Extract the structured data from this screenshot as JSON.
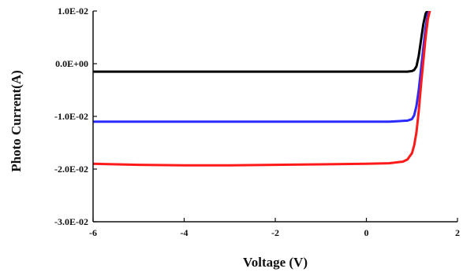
{
  "chart_data": {
    "type": "line",
    "title": "",
    "xlabel": "Voltage (V)",
    "ylabel": "Photo Current(A)",
    "xlim": [
      -6,
      2
    ],
    "ylim": [
      -0.03,
      0.01
    ],
    "x_ticks": [
      -6,
      -4,
      -2,
      0,
      2
    ],
    "x_tick_labels": [
      "-6",
      "-4",
      "-2",
      "0",
      "2"
    ],
    "y_ticks": [
      0.01,
      0.0,
      -0.01,
      -0.02,
      -0.03
    ],
    "y_tick_labels": [
      "1.0E-02",
      "0.0E+00",
      "-1.0E-02",
      "-2.0E-02",
      "-3.0E-02"
    ],
    "grid": false,
    "legend": "none",
    "series": [
      {
        "color": "#000000",
        "x": [
          -6,
          -5,
          -4,
          -3,
          -2,
          -1,
          0,
          0.5,
          0.9,
          1.0,
          1.05,
          1.1,
          1.15,
          1.2,
          1.25,
          1.3,
          1.35
        ],
        "y": [
          -0.0015,
          -0.0015,
          -0.0015,
          -0.0015,
          -0.0015,
          -0.0015,
          -0.0015,
          -0.0015,
          -0.0015,
          -0.0014,
          -0.0012,
          -0.0005,
          0.0015,
          0.0045,
          0.0075,
          0.0095,
          0.0102
        ]
      },
      {
        "color": "#2a2aff",
        "x": [
          -6,
          -5,
          -4,
          -3,
          -2,
          -1,
          0,
          0.5,
          0.9,
          1.0,
          1.05,
          1.1,
          1.15,
          1.2,
          1.25,
          1.3,
          1.35,
          1.4
        ],
        "y": [
          -0.011,
          -0.011,
          -0.011,
          -0.011,
          -0.011,
          -0.011,
          -0.011,
          -0.011,
          -0.0108,
          -0.0105,
          -0.0098,
          -0.008,
          -0.005,
          -0.001,
          0.003,
          0.0068,
          0.0095,
          0.0103
        ]
      },
      {
        "color": "#ff1a1a",
        "x": [
          -6,
          -5,
          -4,
          -3,
          -2,
          -1,
          0,
          0.5,
          0.8,
          0.9,
          1.0,
          1.05,
          1.1,
          1.15,
          1.2,
          1.25,
          1.3,
          1.35,
          1.4
        ],
        "y": [
          -0.019,
          -0.0192,
          -0.0193,
          -0.0193,
          -0.0192,
          -0.0191,
          -0.019,
          -0.0189,
          -0.0186,
          -0.0182,
          -0.017,
          -0.0155,
          -0.013,
          -0.009,
          -0.004,
          0.0005,
          0.005,
          0.0085,
          0.0103
        ]
      }
    ]
  }
}
